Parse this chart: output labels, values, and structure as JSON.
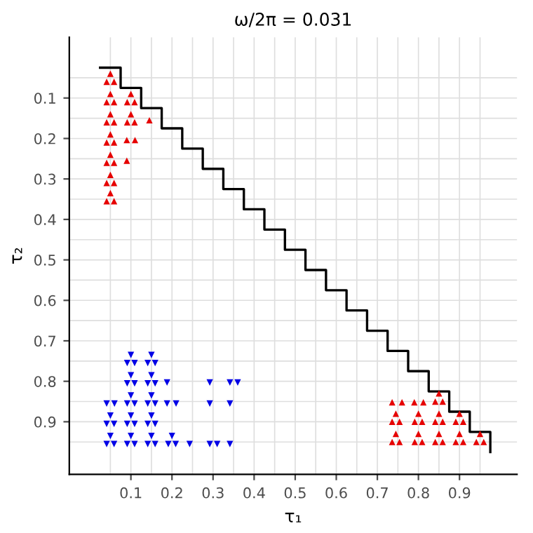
{
  "chart_data": {
    "type": "scatter",
    "title": "ω/2π = 0.031",
    "xlabel": "τ₁",
    "ylabel": "τ₂",
    "xlim": [
      -0.05,
      1.04
    ],
    "ylim": [
      1.03,
      -0.05
    ],
    "xticks": [
      0.1,
      0.2,
      0.3,
      0.4,
      0.5,
      0.6,
      0.7,
      0.8,
      0.9
    ],
    "yticks": [
      0.1,
      0.2,
      0.3,
      0.4,
      0.5,
      0.6,
      0.7,
      0.8,
      0.9
    ],
    "grid": true,
    "series": [
      {
        "type": "step",
        "color": "#000000",
        "line_style": "solid",
        "marker": "none",
        "x": [
          0.025,
          0.075,
          0.125,
          0.175,
          0.225,
          0.275,
          0.325,
          0.375,
          0.425,
          0.475,
          0.525,
          0.575,
          0.625,
          0.675,
          0.725,
          0.775,
          0.825,
          0.875,
          0.925,
          0.975
        ],
        "values": [
          0.025,
          0.075,
          0.125,
          0.175,
          0.225,
          0.275,
          0.325,
          0.375,
          0.425,
          0.475,
          0.525,
          0.575,
          0.625,
          0.675,
          0.725,
          0.775,
          0.825,
          0.875,
          0.925,
          0.975
        ]
      },
      {
        "color": "#e60000",
        "marker": "triangle",
        "x": [
          0.05,
          0.041,
          0.059,
          0.05,
          0.041,
          0.059,
          0.1,
          0.091,
          0.109,
          0.05,
          0.041,
          0.059,
          0.1,
          0.091,
          0.109,
          0.05,
          0.041,
          0.059,
          0.05,
          0.041,
          0.059,
          0.05,
          0.041,
          0.059,
          0.05,
          0.041,
          0.059,
          0.145,
          0.09,
          0.11,
          0.09,
          0.85,
          0.841,
          0.859,
          0.745,
          0.736,
          0.754,
          0.8,
          0.791,
          0.809,
          0.85,
          0.841,
          0.859,
          0.9,
          0.891,
          0.909,
          0.745,
          0.736,
          0.754,
          0.8,
          0.791,
          0.809,
          0.85,
          0.841,
          0.859,
          0.9,
          0.891,
          0.909,
          0.95,
          0.941,
          0.959,
          0.736,
          0.76,
          0.79,
          0.812
        ],
        "values": [
          0.04,
          0.06,
          0.06,
          0.09,
          0.11,
          0.11,
          0.09,
          0.11,
          0.11,
          0.14,
          0.16,
          0.16,
          0.14,
          0.16,
          0.16,
          0.19,
          0.21,
          0.21,
          0.24,
          0.26,
          0.26,
          0.29,
          0.31,
          0.31,
          0.335,
          0.355,
          0.355,
          0.155,
          0.204,
          0.204,
          0.255,
          0.83,
          0.85,
          0.85,
          0.88,
          0.9,
          0.9,
          0.88,
          0.9,
          0.9,
          0.88,
          0.9,
          0.9,
          0.88,
          0.9,
          0.9,
          0.93,
          0.95,
          0.95,
          0.93,
          0.95,
          0.95,
          0.93,
          0.95,
          0.95,
          0.93,
          0.95,
          0.95,
          0.93,
          0.95,
          0.95,
          0.852,
          0.852,
          0.852,
          0.852
        ]
      },
      {
        "color": "#0000e6",
        "marker": "triangle-down",
        "x": [
          0.1,
          0.091,
          0.109,
          0.15,
          0.141,
          0.159,
          0.1,
          0.091,
          0.109,
          0.15,
          0.141,
          0.159,
          0.1,
          0.091,
          0.109,
          0.15,
          0.141,
          0.159,
          0.05,
          0.041,
          0.059,
          0.1,
          0.091,
          0.109,
          0.15,
          0.141,
          0.159,
          0.05,
          0.041,
          0.059,
          0.1,
          0.091,
          0.109,
          0.15,
          0.141,
          0.159,
          0.2,
          0.191,
          0.209,
          0.188,
          0.292,
          0.341,
          0.36,
          0.041,
          0.06,
          0.188,
          0.21,
          0.292,
          0.341,
          0.243,
          0.292,
          0.31,
          0.341
        ],
        "values": [
          0.735,
          0.755,
          0.755,
          0.735,
          0.755,
          0.755,
          0.785,
          0.805,
          0.805,
          0.785,
          0.805,
          0.805,
          0.835,
          0.855,
          0.855,
          0.835,
          0.855,
          0.855,
          0.885,
          0.905,
          0.905,
          0.885,
          0.905,
          0.905,
          0.885,
          0.905,
          0.905,
          0.935,
          0.955,
          0.955,
          0.935,
          0.955,
          0.955,
          0.935,
          0.955,
          0.955,
          0.935,
          0.955,
          0.955,
          0.803,
          0.803,
          0.803,
          0.803,
          0.855,
          0.855,
          0.855,
          0.855,
          0.855,
          0.855,
          0.955,
          0.955,
          0.955,
          0.955
        ]
      }
    ]
  }
}
